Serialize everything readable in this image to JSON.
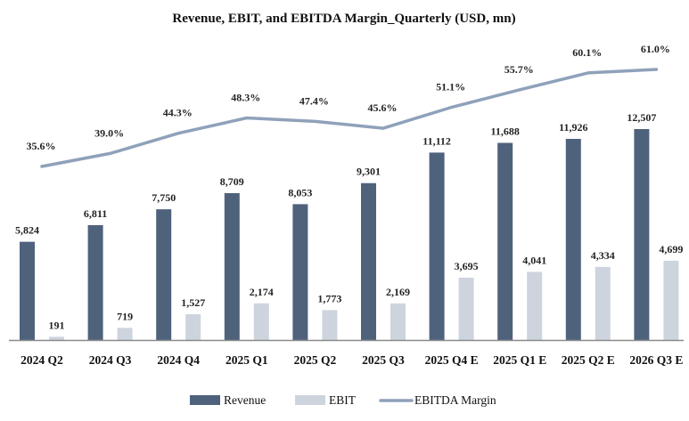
{
  "chart_data": {
    "type": "bar",
    "title": "Revenue, EBIT, and EBITDA Margin_Quarterly (USD, mn)",
    "xlabel": "",
    "ylabel": "",
    "grid": false,
    "legend_position": "bottom",
    "categories": [
      "2024 Q2",
      "2024 Q3",
      "2024 Q4",
      "2025 Q1",
      "2025 Q2",
      "2025 Q3",
      "2025 Q4 E",
      "2025 Q1 E",
      "2025 Q2 E",
      "2026 Q3 E"
    ],
    "series": [
      {
        "name": "Revenue",
        "type": "bar",
        "color": "#4f627c",
        "values": [
          5824,
          6811,
          7750,
          8709,
          8053,
          9301,
          11112,
          11688,
          11926,
          12507
        ],
        "labels": [
          "5,824",
          "6,811",
          "7,750",
          "8,709",
          "8,053",
          "9,301",
          "11,112",
          "11,688",
          "11,926",
          "12,507"
        ]
      },
      {
        "name": "EBIT",
        "type": "bar",
        "color": "#cdd4de",
        "values": [
          191,
          719,
          1527,
          2174,
          1773,
          2169,
          3695,
          4041,
          4334,
          4699
        ],
        "labels": [
          "191",
          "719",
          "1,527",
          "2,174",
          "1,773",
          "2,169",
          "3,695",
          "4,041",
          "4,334",
          "4,699"
        ]
      },
      {
        "name": "EBITDA Margin",
        "type": "line",
        "color": "#8fa1ba",
        "unit": "%",
        "values": [
          35.6,
          39.0,
          44.3,
          48.3,
          47.4,
          45.6,
          51.1,
          55.7,
          60.1,
          61.0
        ],
        "labels": [
          "35.6%",
          "39.0%",
          "44.3%",
          "48.3%",
          "47.4%",
          "45.6%",
          "51.1%",
          "55.7%",
          "60.1%",
          "61.0%"
        ]
      }
    ],
    "legend": [
      "Revenue",
      "EBIT",
      "EBITDA Margin"
    ]
  }
}
